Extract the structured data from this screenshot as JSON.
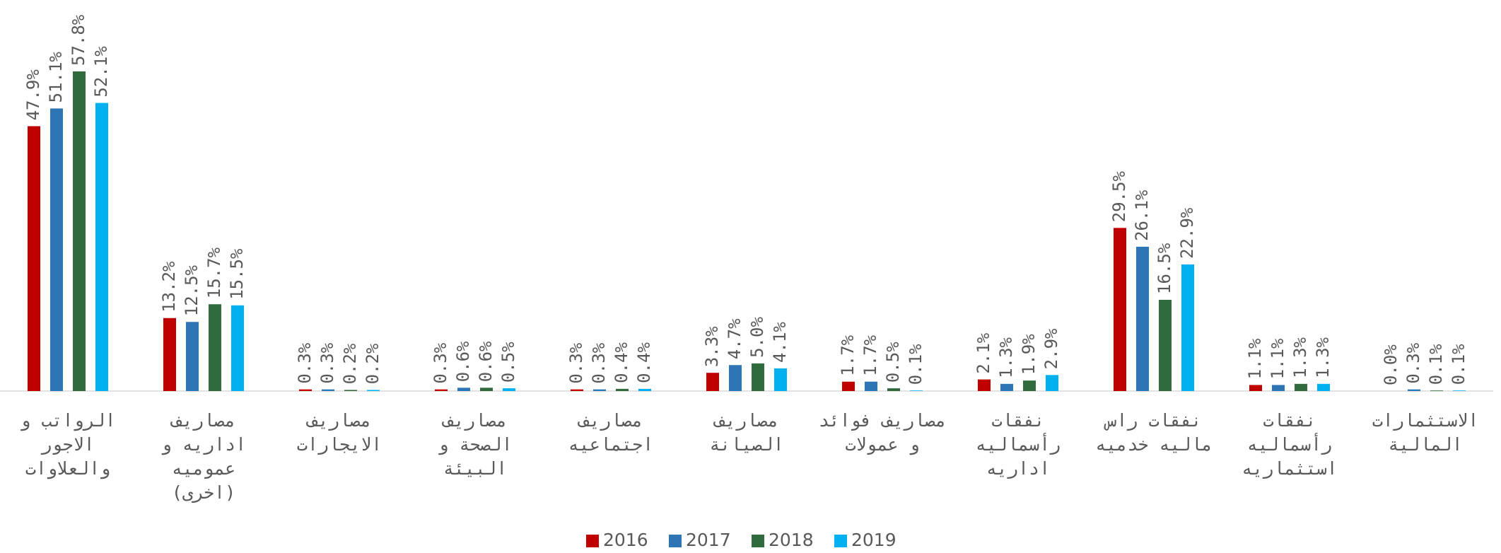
{
  "chart_data": {
    "type": "bar",
    "categories": [
      [
        "الرواتب و",
        "الاجور",
        "والعلاوات"
      ],
      [
        "مصاريف",
        "اداريه و",
        "عموميه",
        "(اخرى)"
      ],
      [
        "مصاريف",
        "الايجارات"
      ],
      [
        "مصاريف",
        "الصحة و",
        "البيئة"
      ],
      [
        "مصاريف",
        "اجتماعيه"
      ],
      [
        "مصاريف",
        "الصيانة"
      ],
      [
        "مصاريف فوائد",
        "و عمولات"
      ],
      [
        "نفقات",
        "رأسماليه",
        "اداريه"
      ],
      [
        "نفقات راس",
        "ماليه خدميه"
      ],
      [
        "نفقات",
        "رأسماليه",
        "استثماريه"
      ],
      [
        "الاستثمارات",
        "المالية"
      ]
    ],
    "series": [
      {
        "name": "2016",
        "color": "#c00000",
        "values": [
          47.9,
          13.2,
          0.3,
          0.3,
          0.3,
          3.3,
          1.7,
          2.1,
          29.5,
          1.1,
          0.0
        ],
        "value_labels": [
          "47.9%",
          "13.2%",
          "0.3%",
          "0.3%",
          "0.3%",
          "3.3%",
          "1.7%",
          "2.1%",
          "29.5%",
          "1.1%",
          "0.0%"
        ]
      },
      {
        "name": "2017",
        "color": "#2e75b6",
        "values": [
          51.1,
          12.5,
          0.3,
          0.6,
          0.3,
          4.7,
          1.7,
          1.3,
          26.1,
          1.1,
          0.3
        ],
        "value_labels": [
          "51.1%",
          "12.5%",
          "0.3%",
          "0.6%",
          "0.3%",
          "4.7%",
          "1.7%",
          "1.3%",
          "26.1%",
          "1.1%",
          "0.3%"
        ]
      },
      {
        "name": "2018",
        "color": "#2f6b3c",
        "values": [
          57.8,
          15.7,
          0.2,
          0.6,
          0.4,
          5.0,
          0.5,
          1.9,
          16.5,
          1.3,
          0.1
        ],
        "value_labels": [
          "57.8%",
          "15.7%",
          "0.2%",
          "0.6%",
          "0.4%",
          "5.0%",
          "0.5%",
          "1.9%",
          "16.5%",
          "1.3%",
          "0.1%"
        ]
      },
      {
        "name": "2019",
        "color": "#00b0f0",
        "values": [
          52.1,
          15.5,
          0.2,
          0.5,
          0.4,
          4.1,
          0.1,
          2.9,
          22.9,
          1.3,
          0.1
        ],
        "value_labels": [
          "52.1%",
          "15.5%",
          "0.2%",
          "0.5%",
          "0.4%",
          "4.1%",
          "0.1%",
          "2.9%",
          "22.9%",
          "1.3%",
          "0.1%"
        ]
      }
    ],
    "legend": "bottom"
  }
}
